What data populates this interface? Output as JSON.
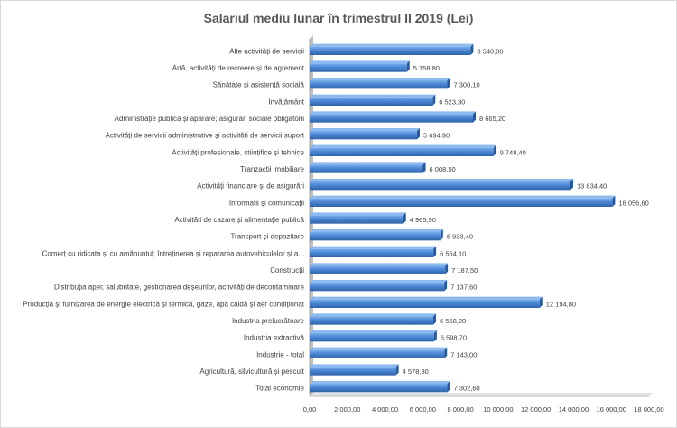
{
  "chart_data": {
    "type": "bar",
    "orientation": "horizontal",
    "title": "Salariul  mediu lunar în trimestrul  II 2019 (Lei)",
    "xlabel": "",
    "ylabel": "",
    "xlim": [
      0,
      18000
    ],
    "x_ticks": [
      0,
      2000,
      4000,
      6000,
      8000,
      10000,
      12000,
      14000,
      16000,
      18000
    ],
    "x_tick_labels": [
      "0,00",
      "2 000,00",
      "4 000,00",
      "6 000,00",
      "8 000,00",
      "10 000,00",
      "12 000,00",
      "14 000,00",
      "16 000,00",
      "18 000,00"
    ],
    "grid": false,
    "legend": "none",
    "bar_color": "#4a86d4",
    "categories": [
      "Alte activități de servicii",
      "Artă, activități de recreere și de agrement",
      "Sănătate și asistență socială",
      "Învățământ",
      "Administrație publică și apărare; asigurări sociale obligatorii",
      "Activități de servicii administrative și activități de servicii suport",
      "Activități profesionale, științifice și tehnice",
      "Tranzacții imobiliare",
      "Activități financiare și de asigurări",
      "Informații și comunicații",
      "Activități de cazare și alimentație publică",
      "Transport și depozitare",
      "Comerț cu ridicata și cu amănuntul; întreținerea și repararea autovehiculelor și a...",
      "Construcții",
      "Distribuția apei; salubritate, gestionarea deșeurilor, activități de decontaminare",
      "Producția și furnizarea de energie electrică și termică, gaze, apă caldă și aer condiționat",
      "Industria prelucrătoare",
      "Industria extractivă",
      "Industrie - total",
      "Agricultură, silvicultură și pescuit",
      "Total economie"
    ],
    "values": [
      8540.0,
      5158.8,
      7300.1,
      6523.3,
      8665.2,
      5694.9,
      9748.4,
      6008.5,
      13834.4,
      16056.6,
      4965.9,
      6933.4,
      6564.1,
      7187.5,
      7137.6,
      12194.8,
      6558.2,
      6598.7,
      7143.0,
      4578.3,
      7302.6
    ],
    "value_labels": [
      "8 540,00",
      "5 158,80",
      "7 300,10",
      "6 523,30",
      "8 665,20",
      "5 694,90",
      "9 748,40",
      "6 008,50",
      "13 834,40",
      "16 056,60",
      "4 965,90",
      "6 933,40",
      "6 564,10",
      "7 187,50",
      "7 137,60",
      "12 194,80",
      "6 558,20",
      "6 598,70",
      "7 143,00",
      "4 578,30",
      "7 302,60"
    ]
  }
}
